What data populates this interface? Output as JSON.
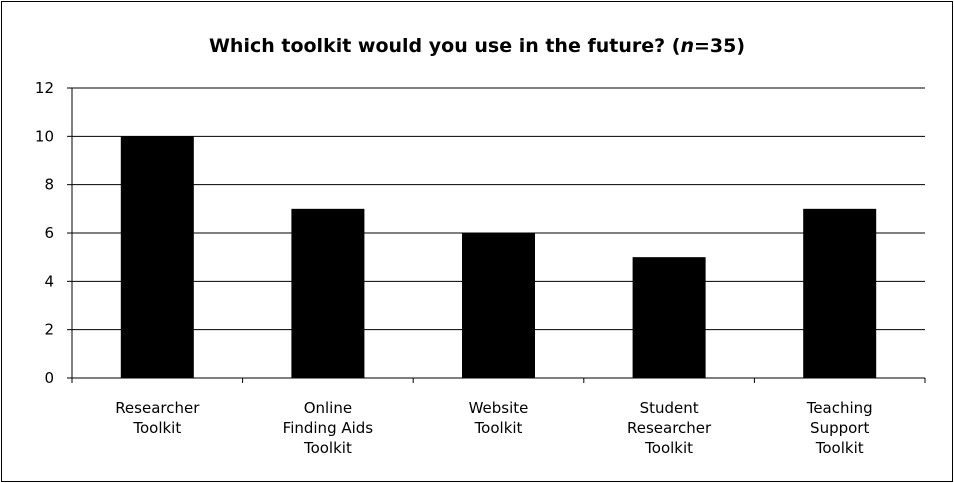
{
  "chart_data": {
    "type": "bar",
    "title_main": "Which toolkit would you use in the future? (",
    "title_n_symbol": "n",
    "title_n_rest": "=35)",
    "categories": [
      [
        "Researcher",
        "Toolkit"
      ],
      [
        "Online",
        "Finding Aids",
        "Toolkit"
      ],
      [
        "Website",
        "Toolkit"
      ],
      [
        "Student",
        "Researcher",
        "Toolkit"
      ],
      [
        "Teaching",
        "Support",
        "Toolkit"
      ]
    ],
    "values": [
      10,
      7,
      6,
      5,
      7
    ],
    "ylim": [
      0,
      12
    ],
    "yticks": [
      0,
      2,
      4,
      6,
      8,
      10,
      12
    ],
    "grid": true,
    "bar_color": "#000000"
  }
}
